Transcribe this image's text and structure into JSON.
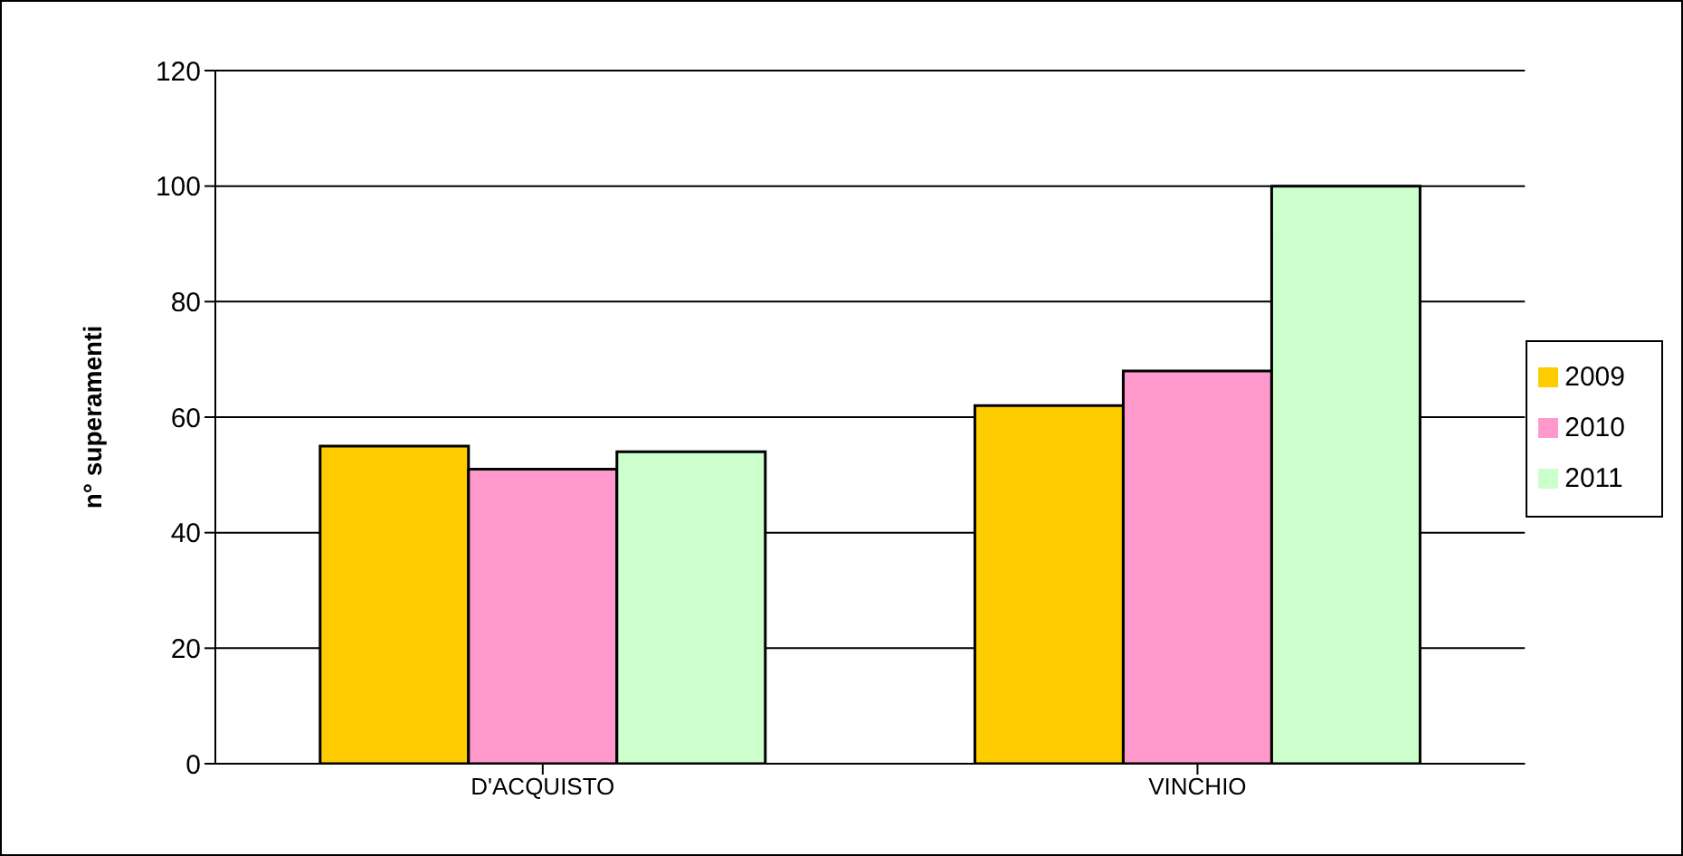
{
  "chart_data": {
    "type": "bar",
    "ylabel": "n° superamenti",
    "categories": [
      "D'ACQUISTO",
      "VINCHIO"
    ],
    "series": [
      {
        "name": "2009",
        "color": "#ffcc00",
        "values": [
          55,
          62
        ]
      },
      {
        "name": "2010",
        "color": "#ff99cc",
        "values": [
          51,
          68
        ]
      },
      {
        "name": "2011",
        "color": "#ccffcc",
        "values": [
          54,
          100
        ]
      }
    ],
    "ylim": [
      0,
      120
    ],
    "yticks": [
      0,
      20,
      40,
      60,
      80,
      100,
      120
    ],
    "grid": "y",
    "legend": "right"
  }
}
